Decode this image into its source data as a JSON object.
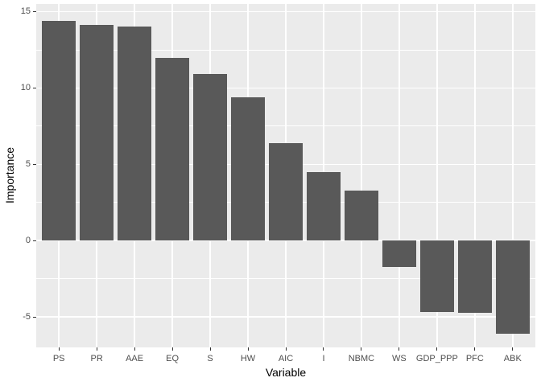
{
  "chart_data": {
    "type": "bar",
    "title": "",
    "xlabel": "Variable",
    "ylabel": "Importance",
    "categories": [
      "PS",
      "PR",
      "AAE",
      "EQ",
      "S",
      "HW",
      "AIC",
      "I",
      "NBMC",
      "WS",
      "GDP_PPP",
      "PFC",
      "ABK"
    ],
    "values": [
      14.4,
      14.15,
      14.05,
      11.95,
      10.9,
      9.4,
      6.4,
      4.5,
      3.3,
      -1.75,
      -4.7,
      -4.75,
      -6.1
    ],
    "ylim": [
      -7.0,
      15.5
    ],
    "yticks": [
      -5,
      0,
      5,
      10,
      15
    ],
    "yticks_minor": [
      -2.5,
      2.5,
      7.5,
      12.5
    ],
    "grid": "major-and-minor, white on gray panel",
    "legend": false,
    "bar_rel_width": 0.9
  },
  "style": {
    "panel_bg": "#ebebeb",
    "bar_color": "#595959",
    "grid_major_color": "#ffffff",
    "grid_minor_color": "#ffffff",
    "tick_label_color": "#4d4d4d",
    "axis_title_color": "#000000",
    "tick_mark_color": "#333333",
    "figure_bg": "#ffffff"
  }
}
